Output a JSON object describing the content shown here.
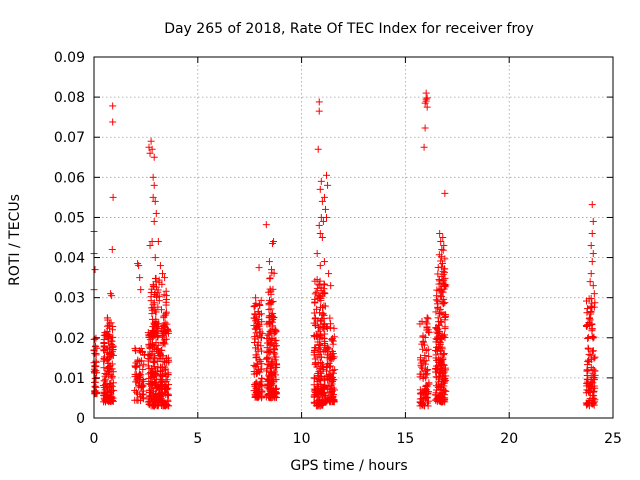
{
  "chart_data": {
    "type": "scatter",
    "title": "Day 265 of 2018, Rate Of TEC Index for receiver froy",
    "xlabel": "GPS time / hours",
    "ylabel": "ROTI / TECUs",
    "xlim": [
      0,
      25
    ],
    "ylim": [
      0,
      0.09
    ],
    "x_ticks": [
      0,
      5,
      10,
      15,
      20,
      25
    ],
    "y_ticks": [
      0,
      0.01,
      0.02,
      0.03,
      0.04,
      0.05,
      0.06,
      0.07,
      0.08,
      0.09
    ],
    "x_tick_labels": [
      "0",
      "5",
      "10",
      "15",
      "20",
      "25"
    ],
    "y_tick_labels": [
      "0",
      "0.01",
      "0.02",
      "0.03",
      "0.04",
      "0.05",
      "0.06",
      "0.07",
      "0.08",
      "0.09"
    ],
    "grid": true,
    "legend": "none",
    "marker": "+",
    "color": "#ff0000",
    "clusters": [
      {
        "x": [
          0.0,
          0.15
        ],
        "ymin": 0.006,
        "ymax": 0.02,
        "n": 40
      },
      {
        "x": [
          0.45,
          0.95
        ],
        "ymin": 0.004,
        "ymax": 0.025,
        "n": 160
      },
      {
        "x": [
          1.95,
          2.45
        ],
        "ymin": 0.004,
        "ymax": 0.018,
        "n": 60
      },
      {
        "x": [
          2.6,
          3.6
        ],
        "ymin": 0.003,
        "ymax": 0.022,
        "n": 260
      },
      {
        "x": [
          2.75,
          3.15
        ],
        "ymin": 0.02,
        "ymax": 0.035,
        "n": 55
      },
      {
        "x": [
          3.25,
          3.55
        ],
        "ymin": 0.02,
        "ymax": 0.034,
        "n": 35
      },
      {
        "x": [
          7.7,
          8.1
        ],
        "ymin": 0.005,
        "ymax": 0.03,
        "n": 110
      },
      {
        "x": [
          8.3,
          8.8
        ],
        "ymin": 0.005,
        "ymax": 0.025,
        "n": 140
      },
      {
        "x": [
          8.4,
          8.7
        ],
        "ymin": 0.025,
        "ymax": 0.038,
        "n": 30
      },
      {
        "x": [
          10.6,
          11.15
        ],
        "ymin": 0.003,
        "ymax": 0.035,
        "n": 190
      },
      {
        "x": [
          11.15,
          11.6
        ],
        "ymin": 0.004,
        "ymax": 0.025,
        "n": 100
      },
      {
        "x": [
          15.7,
          16.15
        ],
        "ymin": 0.003,
        "ymax": 0.025,
        "n": 90
      },
      {
        "x": [
          16.45,
          16.95
        ],
        "ymin": 0.004,
        "ymax": 0.032,
        "n": 190
      },
      {
        "x": [
          16.55,
          16.95
        ],
        "ymin": 0.032,
        "ymax": 0.042,
        "n": 30
      },
      {
        "x": [
          23.7,
          24.15
        ],
        "ymin": 0.003,
        "ymax": 0.03,
        "n": 110
      }
    ],
    "points": [
      [
        0.9,
        0.0778
      ],
      [
        0.9,
        0.0738
      ],
      [
        0.92,
        0.055
      ],
      [
        0.88,
        0.042
      ],
      [
        0.0,
        0.0465
      ],
      [
        0.0,
        0.041
      ],
      [
        0.05,
        0.037
      ],
      [
        0.0,
        0.032
      ],
      [
        0.8,
        0.031
      ],
      [
        0.85,
        0.0305
      ],
      [
        2.1,
        0.0385
      ],
      [
        2.15,
        0.038
      ],
      [
        2.2,
        0.035
      ],
      [
        2.25,
        0.032
      ],
      [
        2.65,
        0.0675
      ],
      [
        2.75,
        0.069
      ],
      [
        2.8,
        0.067
      ],
      [
        2.9,
        0.065
      ],
      [
        2.7,
        0.066
      ],
      [
        2.85,
        0.06
      ],
      [
        2.9,
        0.058
      ],
      [
        2.85,
        0.055
      ],
      [
        2.95,
        0.054
      ],
      [
        3.0,
        0.051
      ],
      [
        2.9,
        0.049
      ],
      [
        2.7,
        0.043
      ],
      [
        2.8,
        0.044
      ],
      [
        2.95,
        0.04
      ],
      [
        3.1,
        0.044
      ],
      [
        3.2,
        0.038
      ],
      [
        3.4,
        0.035
      ],
      [
        3.3,
        0.036
      ],
      [
        7.95,
        0.0375
      ],
      [
        8.3,
        0.0482
      ],
      [
        8.45,
        0.039
      ],
      [
        8.6,
        0.0435
      ],
      [
        8.65,
        0.044
      ],
      [
        8.55,
        0.037
      ],
      [
        10.85,
        0.0788
      ],
      [
        10.85,
        0.0765
      ],
      [
        10.8,
        0.067
      ],
      [
        10.95,
        0.059
      ],
      [
        10.9,
        0.057
      ],
      [
        11.0,
        0.054
      ],
      [
        10.95,
        0.05
      ],
      [
        10.85,
        0.048
      ],
      [
        10.9,
        0.046
      ],
      [
        11.2,
        0.0605
      ],
      [
        11.25,
        0.058
      ],
      [
        11.1,
        0.055
      ],
      [
        11.15,
        0.052
      ],
      [
        11.2,
        0.05
      ],
      [
        11.05,
        0.049
      ],
      [
        11.0,
        0.045
      ],
      [
        10.75,
        0.041
      ],
      [
        10.9,
        0.038
      ],
      [
        11.1,
        0.039
      ],
      [
        11.3,
        0.036
      ],
      [
        11.4,
        0.033
      ],
      [
        16.0,
        0.081
      ],
      [
        16.0,
        0.0795
      ],
      [
        16.05,
        0.0798
      ],
      [
        15.95,
        0.0785
      ],
      [
        16.05,
        0.0775
      ],
      [
        16.0,
        0.079
      ],
      [
        15.95,
        0.0723
      ],
      [
        15.9,
        0.0675
      ],
      [
        16.9,
        0.056
      ],
      [
        16.05,
        0.025
      ],
      [
        16.1,
        0.022
      ],
      [
        16.65,
        0.046
      ],
      [
        16.7,
        0.044
      ],
      [
        16.75,
        0.042
      ],
      [
        16.8,
        0.045
      ],
      [
        16.85,
        0.043
      ],
      [
        24.0,
        0.0532
      ],
      [
        24.05,
        0.049
      ],
      [
        24.0,
        0.046
      ],
      [
        23.95,
        0.043
      ],
      [
        24.05,
        0.041
      ],
      [
        24.0,
        0.039
      ],
      [
        23.95,
        0.036
      ],
      [
        23.9,
        0.034
      ],
      [
        24.05,
        0.033
      ],
      [
        24.1,
        0.031
      ]
    ]
  }
}
